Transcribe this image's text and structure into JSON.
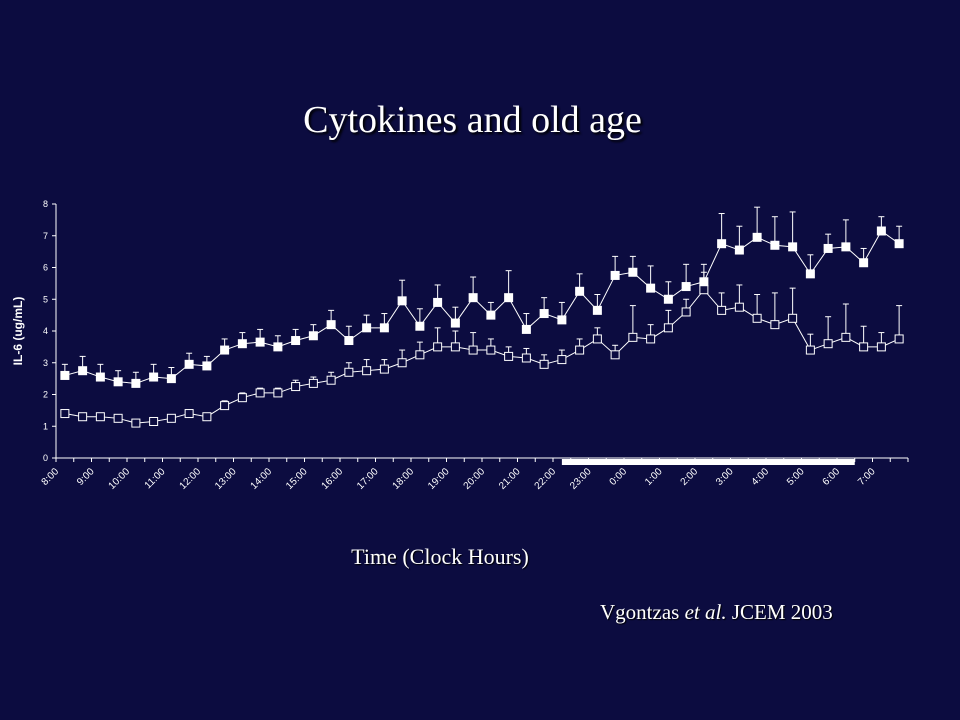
{
  "slide": {
    "title": "Cytokines and old age",
    "citation": {
      "author": "Vgontzas",
      "etal": "et al.",
      "journal": "JCEM 2003"
    }
  },
  "chart_data": {
    "type": "line",
    "ylabel": "IL-6 (ug/mL)",
    "xlabel": "Time (Clock Hours)",
    "ylim": [
      0,
      8
    ],
    "yticks": [
      0,
      1,
      2,
      3,
      4,
      5,
      6,
      7,
      8
    ],
    "xtick_labels": [
      "8:00",
      "9:00",
      "10:00",
      "11:00",
      "12:00",
      "13:00",
      "14:00",
      "15:00",
      "16:00",
      "17:00",
      "18:00",
      "19:00",
      "20:00",
      "21:00",
      "22:00",
      "23:00",
      "0:00",
      "1:00",
      "2:00",
      "3:00",
      "4:00",
      "5:00",
      "6:00",
      "7:00"
    ],
    "grid": false,
    "sleep_bar": {
      "from_index": 28.5,
      "to_index": 45
    },
    "series": [
      {
        "marker": "filled-square",
        "values": [
          2.6,
          2.75,
          2.55,
          2.4,
          2.35,
          2.55,
          2.5,
          2.95,
          2.9,
          3.4,
          3.6,
          3.65,
          3.5,
          3.7,
          3.85,
          4.2,
          3.7,
          4.1,
          4.1,
          4.95,
          4.15,
          4.9,
          4.25,
          5.05,
          4.5,
          5.05,
          4.05,
          4.55,
          4.35,
          5.25,
          4.65,
          5.75,
          5.85,
          5.35,
          5.0,
          5.4,
          5.55,
          6.75,
          6.55,
          6.95,
          6.7,
          6.65,
          5.8,
          6.6,
          6.65,
          6.15,
          7.15,
          6.75
        ],
        "errors": [
          0.35,
          0.45,
          0.4,
          0.35,
          0.35,
          0.4,
          0.35,
          0.35,
          0.3,
          0.35,
          0.35,
          0.4,
          0.35,
          0.35,
          0.35,
          0.45,
          0.45,
          0.4,
          0.45,
          0.65,
          0.55,
          0.55,
          0.5,
          0.65,
          0.4,
          0.85,
          0.5,
          0.5,
          0.55,
          0.55,
          0.5,
          0.6,
          0.5,
          0.7,
          0.55,
          0.7,
          0.55,
          0.95,
          0.75,
          0.95,
          0.9,
          1.1,
          0.6,
          0.45,
          0.85,
          0.45,
          0.45,
          0.55
        ]
      },
      {
        "marker": "open-square",
        "values": [
          1.4,
          1.3,
          1.3,
          1.25,
          1.1,
          1.15,
          1.25,
          1.4,
          1.3,
          1.65,
          1.9,
          2.05,
          2.05,
          2.25,
          2.35,
          2.45,
          2.7,
          2.75,
          2.8,
          3.0,
          3.25,
          3.5,
          3.5,
          3.4,
          3.4,
          3.2,
          3.15,
          2.95,
          3.1,
          3.4,
          3.75,
          3.25,
          3.8,
          3.75,
          4.1,
          4.6,
          5.3,
          4.65,
          4.75,
          4.4,
          4.2,
          4.4,
          3.4,
          3.6,
          3.8,
          3.5,
          3.5,
          3.75
        ],
        "errors": [
          0.1,
          0.1,
          0.1,
          0.1,
          0.1,
          0.1,
          0.1,
          0.1,
          0.1,
          0.15,
          0.15,
          0.15,
          0.15,
          0.2,
          0.2,
          0.25,
          0.3,
          0.35,
          0.3,
          0.4,
          0.4,
          0.6,
          0.5,
          0.55,
          0.35,
          0.3,
          0.3,
          0.3,
          0.3,
          0.35,
          0.35,
          0.3,
          1.0,
          0.45,
          0.55,
          0.4,
          0.55,
          0.55,
          0.7,
          0.75,
          1.0,
          0.95,
          0.5,
          0.85,
          1.05,
          0.65,
          0.45,
          1.05
        ]
      }
    ]
  }
}
